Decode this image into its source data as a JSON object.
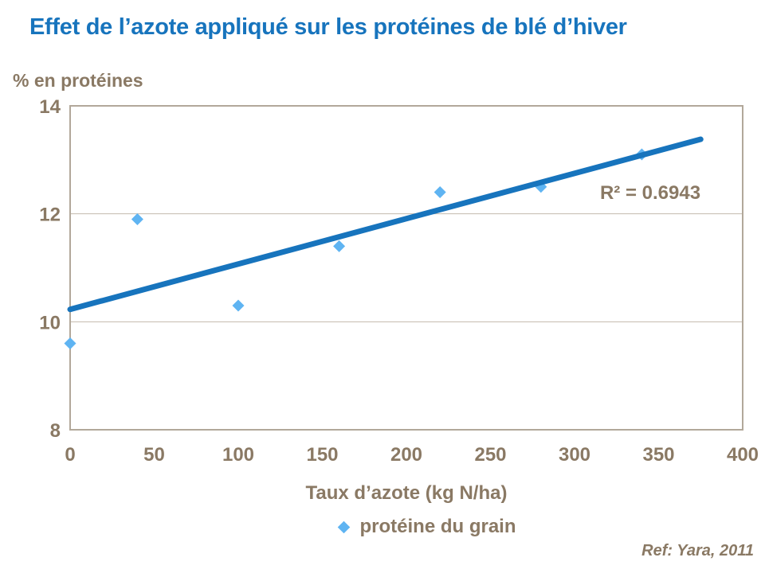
{
  "colors": {
    "accent_blue": "#1774BD",
    "point_blue": "#5FB4F2",
    "label_brown": "#8A7964",
    "axis_tan": "#B2A89A",
    "gridline_tan": "#C3BAAD"
  },
  "footer": {
    "ref": "Ref: Yara, 2011"
  },
  "chart_data": {
    "type": "scatter",
    "title": "Effet de l’azote appliqué sur les protéines de blé d’hiver",
    "xlabel": "Taux d’azote (kg N/ha)",
    "ylabel": "% en protéines",
    "xlim": [
      0,
      400
    ],
    "ylim": [
      8,
      14
    ],
    "x_ticks": [
      0,
      50,
      100,
      150,
      200,
      250,
      300,
      350,
      400
    ],
    "y_ticks": [
      8,
      10,
      12,
      14
    ],
    "grid": "horizontal",
    "legend_position": "bottom",
    "series": [
      {
        "name": "protéine du grain",
        "marker": "diamond",
        "points": [
          [
            0,
            9.6
          ],
          [
            40,
            11.9
          ],
          [
            100,
            10.3
          ],
          [
            160,
            11.4
          ],
          [
            220,
            12.4
          ],
          [
            280,
            12.5
          ],
          [
            340,
            13.1
          ]
        ]
      }
    ],
    "trendline": {
      "type": "linear",
      "x_start": 0,
      "y_start": 10.23,
      "x_end": 375,
      "y_end": 13.38,
      "r2": 0.6943,
      "r2_label": "R² = 0.6943"
    }
  }
}
